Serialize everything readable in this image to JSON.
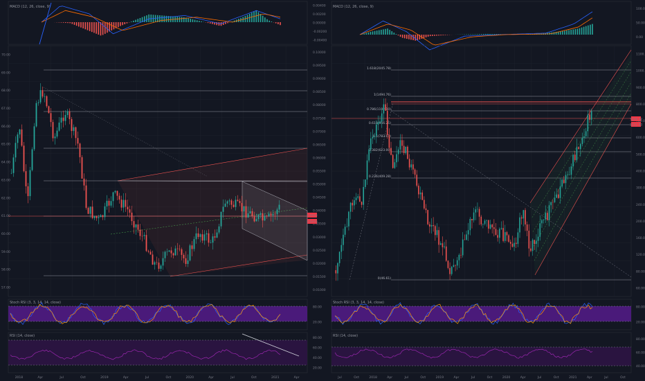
{
  "colors": {
    "background": "#131722",
    "up": "#26a69a",
    "down": "#ef5350",
    "grid": "#1e222d",
    "macd": "#2962ff",
    "signal": "#ff6d00",
    "stoch_band": "#4a1a7a",
    "rsi_band": "#2a1440",
    "rsi_line": "#9c27b0",
    "price_tag": "#f23645"
  },
  "chart_data": [
    {
      "type": "line",
      "panel": "left-macd",
      "label": "MACD (12, 26, close, 9)",
      "yticks": [
        "0.00400",
        "0.00200",
        "0.00000",
        "-0.00200",
        "-0.00400"
      ]
    },
    {
      "type": "candlestick",
      "panel": "left-price",
      "yticks_left": [
        "70.00",
        "69.00",
        "68.00",
        "67.00",
        "66.00",
        "65.00",
        "64.00",
        "63.00",
        "62.00",
        "61.00",
        "60.00",
        "59.00",
        "58.00",
        "57.00"
      ],
      "yticks_right": [
        "0.10000",
        "0.09500",
        "0.09000",
        "0.08500",
        "0.08000",
        "0.07500",
        "0.07000",
        "0.06500",
        "0.06000",
        "0.05500",
        "0.05000",
        "0.04500",
        "0.04000",
        "0.03500",
        "0.03000",
        "0.02500",
        "0.02000",
        "0.01500",
        "0.01000"
      ],
      "price_tags": [
        "0.0474",
        "0.0476"
      ],
      "xticks": [
        "2018",
        "Apr",
        "Jul",
        "Oct",
        "2019",
        "Apr",
        "Jul",
        "Oct",
        "2020",
        "Apr",
        "Jul",
        "Oct",
        "2021",
        "Apr"
      ]
    },
    {
      "type": "line",
      "panel": "left-stoch",
      "label": "Stoch RSI (3, 3, 14, 14, close)",
      "yticks": [
        "80.00",
        "20.00"
      ]
    },
    {
      "type": "line",
      "panel": "left-rsi",
      "label": "RSI (14, close)",
      "yticks": [
        "80.00",
        "60.00",
        "40.00",
        "20.00"
      ]
    },
    {
      "type": "line",
      "panel": "right-macd",
      "label": "MACD (12, 26, close, 9)",
      "yticks": [
        "100.00",
        "50.00",
        "0.00"
      ]
    },
    {
      "type": "candlestick",
      "panel": "right-price",
      "yticks": [
        "1100.00",
        "1000.00",
        "900.00",
        "800.00",
        "700.00",
        "600.00",
        "500.00",
        "400.00",
        "300.00",
        "240.00",
        "200.00",
        "160.00",
        "120.00",
        "80.00",
        "60.00"
      ],
      "fib_levels": [
        "1.618(2045.78)",
        "1(1494.76)",
        "0.786(1192.10)",
        "0.618(956.25)",
        "0.5(783.91)",
        "0.382(623.00)",
        "0.236(409.28)",
        "0(46.61)"
      ],
      "price_tags": [
        "1154.32",
        "1111.00"
      ],
      "xticks": [
        "Jul",
        "Oct",
        "2018",
        "Apr",
        "Jul",
        "Oct",
        "2019",
        "Apr",
        "Jul",
        "Oct",
        "2020",
        "Apr",
        "Jul",
        "Oct",
        "2021",
        "Apr",
        "Jul",
        "Oct"
      ]
    },
    {
      "type": "line",
      "panel": "right-stoch",
      "label": "Stoch RSI (3, 3, 14, 14, close)",
      "yticks": [
        "80.00",
        "20.00"
      ]
    },
    {
      "type": "line",
      "panel": "right-rsi",
      "label": "RSI (14, close)",
      "yticks": [
        "80.00",
        "60.00",
        "40.00"
      ]
    }
  ]
}
